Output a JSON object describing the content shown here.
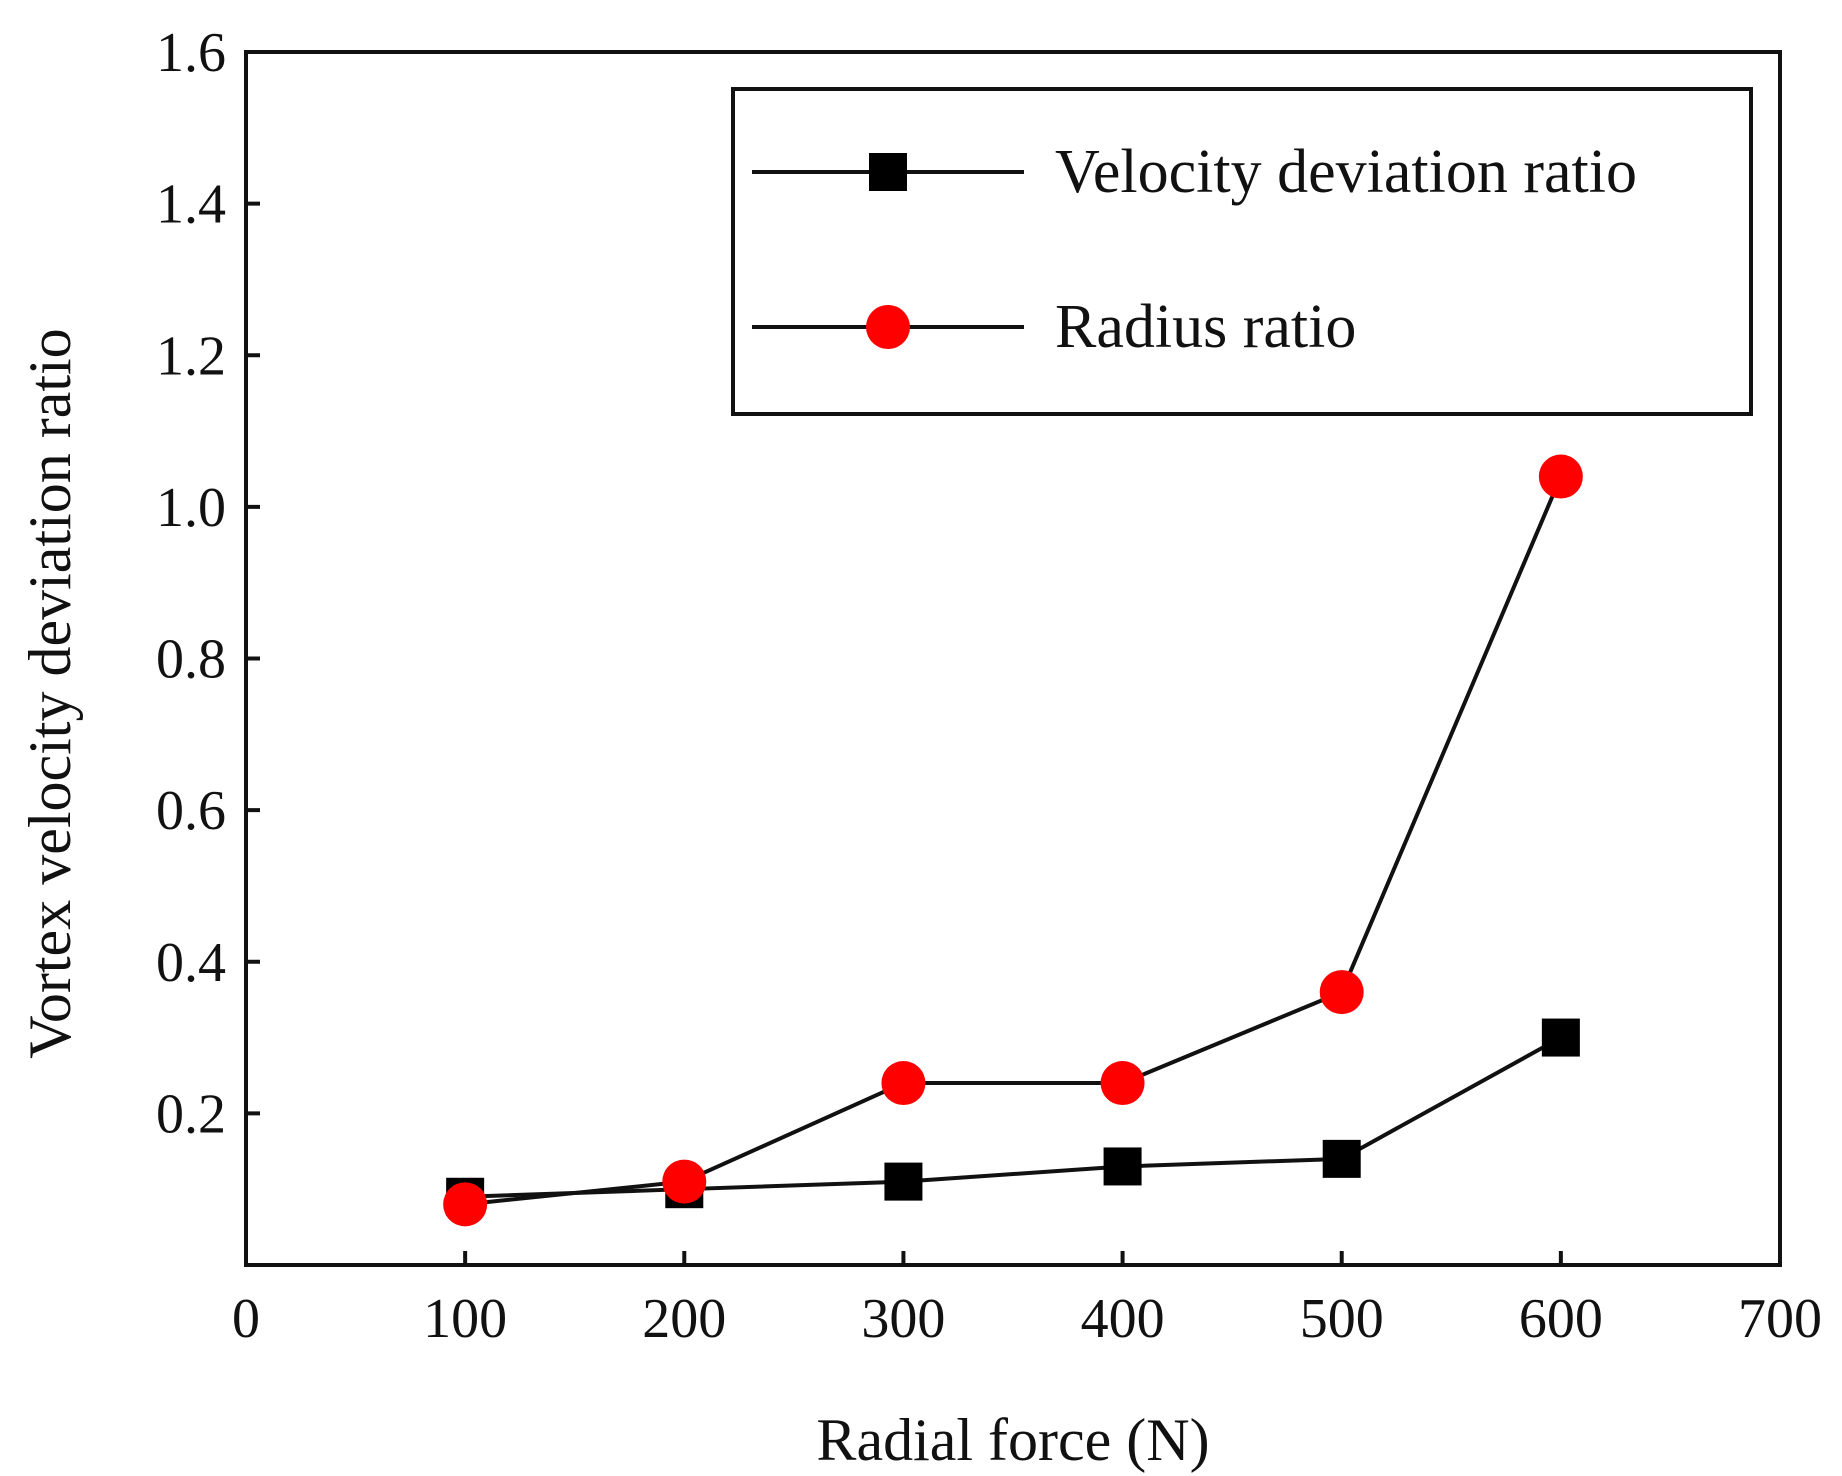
{
  "chart_data": {
    "type": "line",
    "title": "",
    "xlabel": "Radial force (N)",
    "ylabel": "Vortex velocity deviation ratio",
    "xlim": [
      0,
      700
    ],
    "ylim": [
      0.0,
      1.6
    ],
    "xticks": [
      0,
      100,
      200,
      300,
      400,
      500,
      600,
      700
    ],
    "xtick_labels": [
      "0",
      "100",
      "200",
      "300",
      "400",
      "500",
      "600",
      "700"
    ],
    "yticks": [
      0.2,
      0.4,
      0.6,
      0.8,
      1.0,
      1.2,
      1.4,
      1.6
    ],
    "ytick_labels": [
      "0.2",
      "0.4",
      "0.6",
      "0.8",
      "1.0",
      "1.2",
      "1.4",
      "1.6"
    ],
    "grid": false,
    "legend_position": "top-right",
    "series": [
      {
        "name": "Velocity deviation ratio",
        "marker": "square",
        "color": "#000000",
        "x": [
          100,
          200,
          300,
          400,
          500,
          600
        ],
        "values": [
          0.09,
          0.1,
          0.11,
          0.13,
          0.14,
          0.3
        ]
      },
      {
        "name": "Radius ratio",
        "marker": "circle",
        "color": "#ff0000",
        "x": [
          100,
          200,
          300,
          400,
          500,
          600
        ],
        "values": [
          0.08,
          0.11,
          0.24,
          0.24,
          0.36,
          1.04
        ]
      }
    ],
    "line_color": "#111111"
  }
}
